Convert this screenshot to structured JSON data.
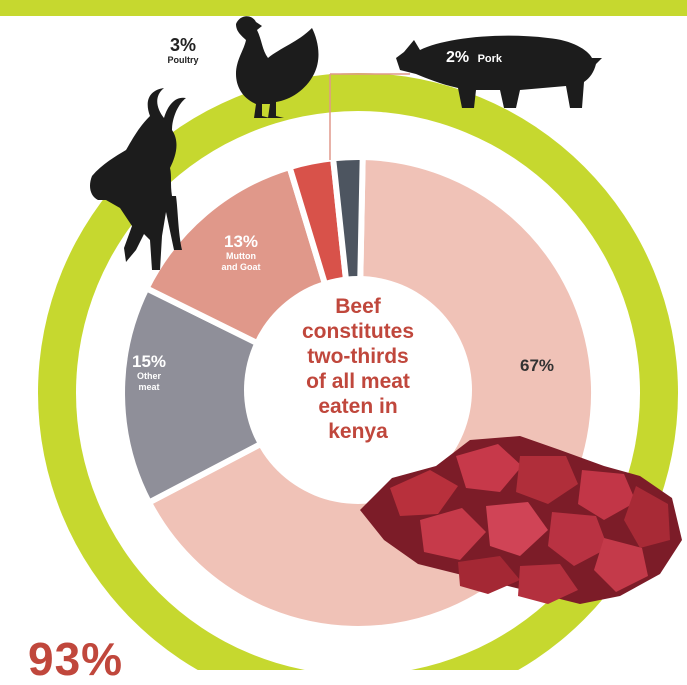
{
  "chart_data": {
    "type": "pie",
    "donut": true,
    "center_text": "Beef\nconstitutes\ntwo-thirds\nof all meat\neaten in\nkenya",
    "slices": [
      {
        "label": "Beef",
        "percent_label": "67%",
        "value": 67,
        "color": "#f0c2b7"
      },
      {
        "label": "Other\nmeat",
        "percent_label": "15%",
        "value": 15,
        "color": "#8f8f99"
      },
      {
        "label": "Mutton\nand Goat",
        "percent_label": "13%",
        "value": 13,
        "color": "#e0988a"
      },
      {
        "label": "Poultry",
        "percent_label": "3%",
        "value": 3,
        "color": "#d8524a"
      },
      {
        "label": "Pork",
        "percent_label": "2%",
        "value": 2,
        "color": "#4d5560"
      }
    ],
    "colors": {
      "ring": "#c6d82f",
      "gap": "#ffffff",
      "center_text": "#c0473c"
    }
  },
  "bottom_stat": "93%"
}
